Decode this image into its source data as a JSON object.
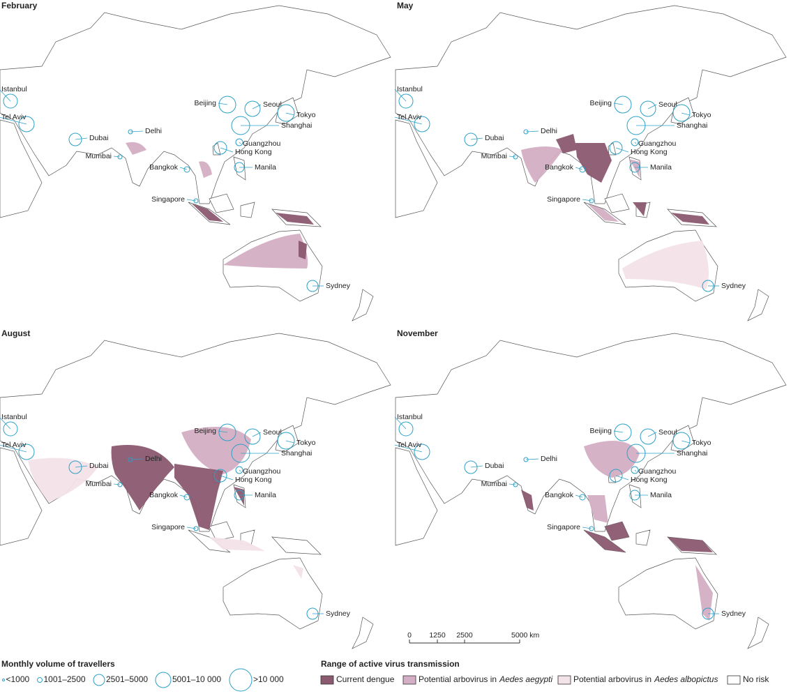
{
  "panels": [
    {
      "title": "February",
      "cities": [
        "Istanbul",
        "Tel Aviv",
        "Dubai",
        "Mumbai",
        "Delhi",
        "Bangkok",
        "Singapore",
        "Manila",
        "Hong Kong",
        "Guangzhou",
        "Shanghai",
        "Beijing",
        "Seoul",
        "Tokyo",
        "Sydney"
      ]
    },
    {
      "title": "May",
      "cities": [
        "Istanbul",
        "Tel Aviv",
        "Dubai",
        "Mumbai",
        "Delhi",
        "Bangkok",
        "Singapore",
        "Manila",
        "Hong Kong",
        "Guangzhou",
        "Shanghai",
        "Beijing",
        "Seoul",
        "Tokyo",
        "Sydney"
      ]
    },
    {
      "title": "August",
      "cities": [
        "Istanbul",
        "Tel Aviv",
        "Dubai",
        "Mumbai",
        "Delhi",
        "Bangkok",
        "Singapore",
        "Manila",
        "Hong Kong",
        "Guangzhou",
        "Shanghai",
        "Beijing",
        "Seoul",
        "Tokyo",
        "Sydney"
      ]
    },
    {
      "title": "November",
      "cities": [
        "Istanbul",
        "Tel Aviv",
        "Dubai",
        "Mumbai",
        "Delhi",
        "Bangkok",
        "Singapore",
        "Manila",
        "Hong Kong",
        "Guangzhou",
        "Shanghai",
        "Beijing",
        "Seoul",
        "Tokyo",
        "Sydney"
      ]
    }
  ],
  "scale_bar": {
    "ticks": [
      "0",
      "1250",
      "2500",
      "5000 km"
    ]
  },
  "legend": {
    "travellers": {
      "title": "Monthly volume of travellers",
      "items": [
        "<1000",
        "1001–2500",
        "2501–5000",
        "5001–10 000",
        ">10 000"
      ]
    },
    "transmission": {
      "title": "Range of active virus transmission",
      "items": [
        {
          "text": "Current dengue"
        },
        {
          "prefix": "Potential arbovirus in",
          "species": "Aedes aegypti"
        },
        {
          "prefix": "Potential arbovirus in",
          "species": "Aedes albopictus"
        },
        {
          "text": "No risk"
        }
      ]
    }
  }
}
